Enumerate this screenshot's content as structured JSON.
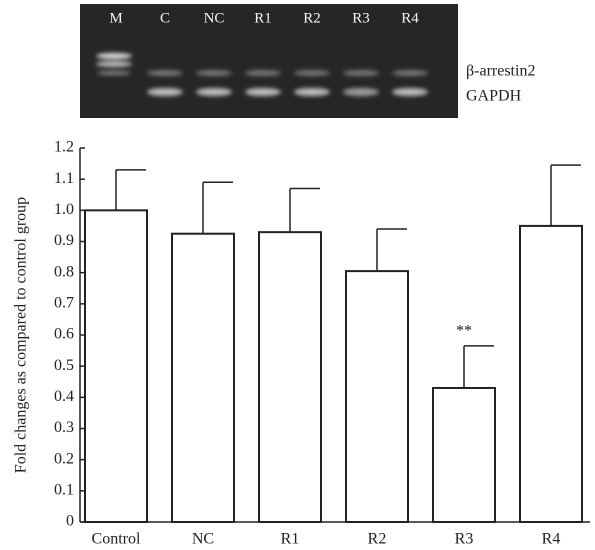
{
  "gel": {
    "lanes": [
      "M",
      "C",
      "NC",
      "R1",
      "R2",
      "R3",
      "R4"
    ],
    "bands": [
      "β-arrestin2",
      "GAPDH"
    ]
  },
  "chart_data": {
    "type": "bar",
    "y_label": "Fold changes as compared to control group",
    "categories": [
      "Control",
      "NC",
      "R1",
      "R2",
      "R3",
      "R4"
    ],
    "values": [
      1.0,
      0.925,
      0.93,
      0.805,
      0.43,
      0.95
    ],
    "errors": [
      0.13,
      0.165,
      0.14,
      0.135,
      0.135,
      0.195
    ],
    "color": "#ffffff",
    "ylim": [
      0,
      1.2
    ],
    "yticks": [
      0,
      0.1,
      0.2,
      0.3,
      0.4,
      0.5,
      0.6,
      0.7,
      0.8,
      0.9,
      {
        "value": 1,
        "label": "1.0"
      },
      1.1,
      1.2
    ],
    "annotations": [
      {
        "text": "**",
        "category": "R3"
      }
    ]
  }
}
